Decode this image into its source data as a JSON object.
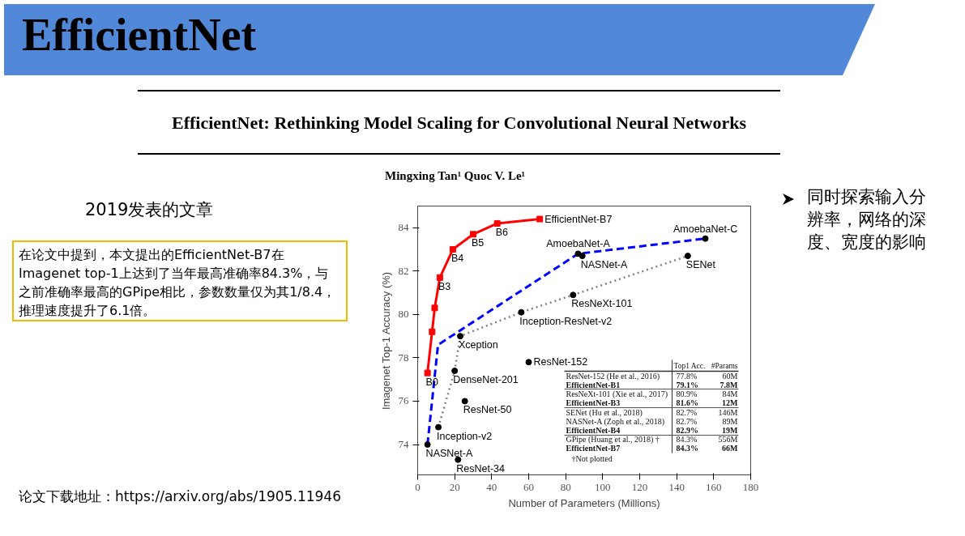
{
  "chart_data": {
    "type": "line",
    "title": "EfficientNet",
    "subtitle": "EfficientNet: Rethinking Model Scaling for Convolutional Neural Networks",
    "xlabel": "Number of Parameters (Millions)",
    "ylabel": "Imagenet Top-1 Accuracy (%)",
    "xlim": [
      0,
      180
    ],
    "xticks": [
      0,
      20,
      40,
      60,
      80,
      100,
      120,
      140,
      160,
      180
    ],
    "ylim": [
      72.6,
      85.0
    ],
    "yticks": [
      74,
      76,
      78,
      80,
      82,
      84
    ],
    "grid": false,
    "series": [
      {
        "color": "#ff0000",
        "x": [
          5.3,
          7.8,
          9.2,
          12,
          19,
          30,
          43,
          66
        ],
        "values": [
          77.3,
          79.2,
          80.3,
          81.7,
          83.0,
          83.7,
          84.2,
          84.4
        ],
        "marker": "square",
        "line_style": "solid"
      },
      {
        "color": "#0000ff",
        "x": [
          5.3,
          11,
          86.7,
          155.5
        ],
        "values": [
          74.0,
          78.6,
          82.8,
          83.5
        ],
        "marker": "none",
        "line_style": "dashed"
      },
      {
        "color": "#808080",
        "x": [
          11.2,
          20,
          23,
          56,
          84,
          146
        ],
        "values": [
          74.8,
          77.4,
          79.0,
          80.1,
          80.9,
          82.7
        ],
        "marker": "none",
        "line_style": "dotted"
      },
      {
        "type": "scatter",
        "color": "#000000",
        "x": [
          5.3,
          11.2,
          20,
          23,
          25.5,
          21.8,
          60,
          56,
          84,
          86.7,
          89,
          146,
          155.5
        ],
        "values": [
          74.0,
          74.8,
          77.4,
          79.0,
          76.0,
          73.3,
          77.8,
          80.1,
          80.9,
          82.8,
          82.7,
          82.7,
          83.5
        ],
        "marker": "circle"
      }
    ],
    "annotations": [
      "Mingxing Tan¹   Quoc V. Le¹",
      "2019发表的文章",
      "在论文中提到，本文提出的EfficientNet-B7在Imagenet top-1上达到了当年最高准确率84.3%，与之前准确率最高的GPipe相比，参数数量仅为其1/8.4，推理速度提升了6.1倍。",
      "同时探索输入分辨率，网络的深度、宽度的影响",
      "论文下载地址：https://arxiv.org/abs/1905.11946",
      "Top1 Acc.",
      "#Params",
      "ResNet-152 (He et al., 2016)",
      "77.8%",
      "60M",
      "EfficientNet-B1",
      "79.1%",
      "7.8M",
      "ResNeXt-101 (Xie et al., 2017)",
      "80.9%",
      "84M",
      "EfficientNet-B3",
      "81.6%",
      "12M",
      "SENet (Hu et al., 2018)",
      "82.7%",
      "146M",
      "NASNet-A (Zoph et al., 2018)",
      "82.7%",
      "89M",
      "EfficientNet-B4",
      "82.9%",
      "19M",
      "GPipe (Huang et al., 2018) †",
      "84.3%",
      "556M",
      "EfficientNet-B7",
      "84.3%",
      "66M",
      "†Not plotted",
      {
        "text": "EfficientNet-B7",
        "x": 66,
        "y": 84.4
      },
      {
        "text": "B6",
        "x": 43,
        "y": 84.2
      },
      {
        "text": "B5",
        "x": 30,
        "y": 83.7
      },
      {
        "text": "B4",
        "x": 19,
        "y": 83.0
      },
      {
        "text": "B3",
        "x": 12,
        "y": 81.7
      },
      {
        "text": "B0",
        "x": 5.3,
        "y": 77.3
      },
      {
        "text": "AmoebaNet-A",
        "x": 86.7,
        "y": 82.8
      },
      {
        "text": "NASNet-A",
        "x": 89,
        "y": 82.7
      },
      {
        "text": "AmoebaNet-C",
        "x": 155.5,
        "y": 83.5
      },
      {
        "text": "SENet",
        "x": 146,
        "y": 82.7
      },
      {
        "text": "ResNeXt-101",
        "x": 84,
        "y": 80.9
      },
      {
        "text": "Inception-ResNet-v2",
        "x": 56,
        "y": 80.1
      },
      {
        "text": "Xception",
        "x": 23,
        "y": 79.0
      },
      {
        "text": "ResNet-152",
        "x": 60,
        "y": 77.8
      },
      {
        "text": "DenseNet-201",
        "x": 20,
        "y": 77.4
      },
      {
        "text": "ResNet-50",
        "x": 25.5,
        "y": 76.0
      },
      {
        "text": "Inception-v2",
        "x": 11.2,
        "y": 74.8
      },
      {
        "text": "NASNet-A",
        "x": 5.3,
        "y": 74.0
      },
      {
        "text": "ResNet-34",
        "x": 21.8,
        "y": 73.3
      }
    ]
  }
}
